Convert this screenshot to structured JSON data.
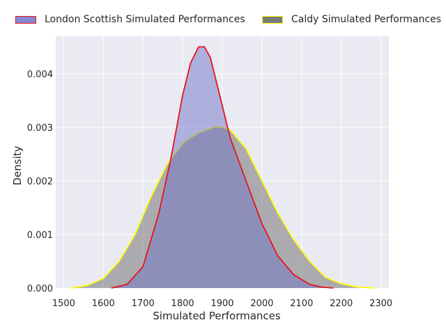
{
  "chart_data": {
    "type": "area",
    "xlabel": "Simulated Performances",
    "ylabel": "Density",
    "xlim": [
      1480,
      2320
    ],
    "ylim": [
      0,
      0.0047
    ],
    "xticks": [
      1500,
      1600,
      1700,
      1800,
      1900,
      2000,
      2100,
      2200,
      2300
    ],
    "yticks": [
      0.0,
      0.001,
      0.002,
      0.003,
      0.004
    ],
    "ytick_labels": [
      "0.000",
      "0.001",
      "0.002",
      "0.003",
      "0.004"
    ],
    "grid": true,
    "legend_position": "top",
    "background": "#eaeaf2",
    "series": [
      {
        "name": "London Scottish Simulated Performances",
        "fill": "#6f73c6",
        "fill_opacity": 0.5,
        "line": "#e8131b",
        "x": [
          1620,
          1660,
          1700,
          1740,
          1770,
          1800,
          1820,
          1840,
          1855,
          1870,
          1890,
          1920,
          1960,
          2000,
          2040,
          2080,
          2120,
          2150,
          2180
        ],
        "y": [
          0.0,
          7e-05,
          0.0004,
          0.0014,
          0.0024,
          0.0036,
          0.0042,
          0.0045,
          0.0045,
          0.0043,
          0.0037,
          0.0028,
          0.002,
          0.0012,
          0.0006,
          0.00025,
          7e-05,
          2e-05,
          0.0
        ]
      },
      {
        "name": "Caldy Simulated Performances",
        "fill": "#6b6b6b",
        "fill_opacity": 0.5,
        "line": "#ffff00",
        "x": [
          1520,
          1560,
          1600,
          1640,
          1680,
          1720,
          1760,
          1800,
          1840,
          1880,
          1900,
          1920,
          1960,
          2000,
          2040,
          2080,
          2120,
          2160,
          2200,
          2240,
          2285
        ],
        "y": [
          0.0,
          5e-05,
          0.00018,
          0.0005,
          0.001,
          0.0017,
          0.0023,
          0.0027,
          0.0029,
          0.003,
          0.003,
          0.00295,
          0.0026,
          0.002,
          0.0014,
          0.0009,
          0.0005,
          0.0002,
          8e-05,
          2e-05,
          0.0
        ]
      }
    ]
  }
}
